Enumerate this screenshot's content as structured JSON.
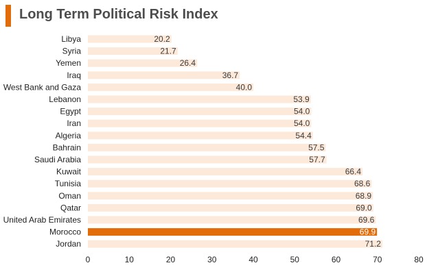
{
  "header": {
    "title": "Long Term Political Risk Index"
  },
  "colors": {
    "accent": "#e36c0a",
    "bar": "#fde9da",
    "highlight_bar": "#e36c0a"
  },
  "chart_data": {
    "type": "bar",
    "orientation": "horizontal",
    "title": "Long Term Political Risk Index",
    "categories": [
      "Libya",
      "Syria",
      "Yemen",
      "Iraq",
      "West Bank and Gaza",
      "Lebanon",
      "Egypt",
      "Iran",
      "Algeria",
      "Bahrain",
      "Saudi Arabia",
      "Kuwait",
      "Tunisia",
      "Oman",
      "Qatar",
      "United Arab Emirates",
      "Morocco",
      "Jordan"
    ],
    "values": [
      20.2,
      21.7,
      26.4,
      36.7,
      40.0,
      53.9,
      54.0,
      54.0,
      54.4,
      57.5,
      57.7,
      66.4,
      68.6,
      68.9,
      69.0,
      69.6,
      69.9,
      71.2
    ],
    "value_labels": [
      "20.2",
      "21.7",
      "26.4",
      "36.7",
      "40.0",
      "53.9",
      "54.0",
      "54.0",
      "54.4",
      "57.5",
      "57.7",
      "66.4",
      "68.6",
      "68.9",
      "69.0",
      "69.6",
      "69.9",
      "71.2"
    ],
    "highlight": "Morocco",
    "xlim": [
      0,
      80
    ],
    "xticks": [
      0,
      10,
      20,
      30,
      40,
      50,
      60,
      70,
      80
    ],
    "xlabel": "",
    "ylabel": "",
    "grid": false,
    "legend": "none"
  }
}
